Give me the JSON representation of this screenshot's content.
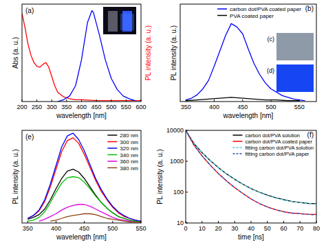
{
  "chart_data": [
    {
      "type": "line",
      "title": "(a)",
      "xlabel": "wavelength [nm]",
      "ylabel": "Abs (a. u.)",
      "y2label": "PL intensity (a. u.)",
      "xlim": [
        200,
        600
      ],
      "xticks": [
        200,
        250,
        300,
        350,
        400,
        450,
        500,
        550,
        600
      ],
      "ylim": [
        0,
        1.05
      ],
      "y2lim": [
        0,
        1.05
      ],
      "tick_labels": "x",
      "series": [
        {
          "color": "#ff0000",
          "x": [
            200,
            210,
            220,
            230,
            240,
            250,
            260,
            270,
            280,
            290,
            300,
            310,
            320,
            340,
            360,
            380,
            400,
            450,
            500,
            550,
            600
          ],
          "values": [
            0.95,
            0.8,
            0.62,
            0.5,
            0.42,
            0.38,
            0.37,
            0.4,
            0.42,
            0.37,
            0.27,
            0.17,
            0.1,
            0.05,
            0.03,
            0.02,
            0.02,
            0.01,
            0.01,
            0.01,
            0.01
          ]
        },
        {
          "color": "#0000ff",
          "axis": "y2",
          "x": [
            320,
            340,
            360,
            380,
            400,
            420,
            435,
            440,
            460,
            480,
            500,
            520,
            540,
            560,
            580
          ],
          "values": [
            0,
            0.02,
            0.06,
            0.17,
            0.45,
            0.85,
            0.98,
            0.96,
            0.72,
            0.45,
            0.25,
            0.13,
            0.06,
            0.03,
            0.01
          ]
        }
      ]
    },
    {
      "type": "line",
      "title": "(b)",
      "xlabel": "wavelength [nm]",
      "ylabel": "PL intensity (a. u.)",
      "xlim": [
        340,
        580
      ],
      "xticks": [
        350,
        400,
        450,
        500,
        550
      ],
      "ylim": [
        0,
        1.15
      ],
      "tick_labels": "x",
      "legend": "top-right",
      "annotations": [
        "(c)",
        "(d)"
      ],
      "series": [
        {
          "name": "carbon dot/PVA coated paper",
          "color": "#0000ff",
          "x": [
            350,
            360,
            370,
            380,
            390,
            400,
            410,
            420,
            430,
            440,
            450,
            460,
            470,
            480,
            490,
            500,
            520,
            540,
            560
          ],
          "values": [
            0.02,
            0.04,
            0.08,
            0.15,
            0.25,
            0.42,
            0.6,
            0.78,
            0.92,
            0.88,
            0.8,
            0.62,
            0.45,
            0.32,
            0.22,
            0.15,
            0.07,
            0.03,
            0.01
          ]
        },
        {
          "name": "PVA coated paper",
          "color": "#000000",
          "x": [
            350,
            370,
            390,
            410,
            430,
            450,
            470,
            490,
            510,
            530,
            550
          ],
          "values": [
            0.01,
            0.02,
            0.03,
            0.04,
            0.05,
            0.04,
            0.03,
            0.02,
            0.02,
            0.01,
            0.01
          ]
        }
      ]
    },
    {
      "type": "line",
      "title": "(e)",
      "xlabel": "wavelength [nm]",
      "ylabel": "PL intensity (a. u.)",
      "xlim": [
        340,
        550
      ],
      "xticks": [
        350,
        400,
        450,
        500,
        550
      ],
      "ylim": [
        0,
        1
      ],
      "tick_labels": "x",
      "legend": "top-right",
      "x": [
        350,
        360,
        370,
        380,
        390,
        400,
        410,
        420,
        430,
        440,
        450,
        460,
        470,
        480,
        490,
        500,
        510,
        520,
        530,
        540,
        550
      ],
      "series": [
        {
          "name": "280 nm",
          "color": "#000000",
          "values": [
            0.04,
            0.06,
            0.09,
            0.15,
            0.25,
            0.37,
            0.48,
            0.56,
            0.58,
            0.55,
            0.48,
            0.39,
            0.3,
            0.22,
            0.16,
            0.11,
            0.07,
            0.05,
            0.03,
            0.02,
            0.01
          ]
        },
        {
          "name": "300 nm",
          "color": "#ff0000",
          "values": [
            0.05,
            0.08,
            0.13,
            0.23,
            0.39,
            0.58,
            0.77,
            0.89,
            0.92,
            0.86,
            0.74,
            0.6,
            0.46,
            0.34,
            0.25,
            0.17,
            0.11,
            0.07,
            0.05,
            0.03,
            0.02
          ]
        },
        {
          "name": "320 nm",
          "color": "#0000ff",
          "values": [
            0.05,
            0.08,
            0.14,
            0.25,
            0.42,
            0.62,
            0.82,
            0.94,
            0.97,
            0.9,
            0.78,
            0.63,
            0.48,
            0.36,
            0.26,
            0.18,
            0.12,
            0.08,
            0.05,
            0.03,
            0.02
          ]
        },
        {
          "name": "340 nm",
          "color": "#00c000",
          "values": [
            0.02,
            0.03,
            0.06,
            0.12,
            0.22,
            0.33,
            0.43,
            0.49,
            0.5,
            0.49,
            0.44,
            0.37,
            0.29,
            0.22,
            0.16,
            0.11,
            0.07,
            0.05,
            0.03,
            0.02,
            0.01
          ]
        },
        {
          "name": "360 nm",
          "color": "#e000e0",
          "values": [
            null,
            null,
            0.02,
            0.04,
            0.07,
            0.1,
            0.14,
            0.17,
            0.19,
            0.2,
            0.2,
            0.18,
            0.15,
            0.12,
            0.09,
            0.06,
            0.04,
            0.03,
            0.02,
            0.01,
            0.01
          ]
        },
        {
          "name": "380 nm",
          "color": "#8b4513",
          "values": [
            null,
            null,
            null,
            null,
            0.02,
            0.03,
            0.05,
            0.07,
            0.08,
            0.09,
            0.1,
            0.1,
            0.09,
            0.07,
            0.05,
            0.04,
            0.03,
            0.02,
            0.01,
            0.01,
            0.01
          ]
        }
      ]
    },
    {
      "type": "line",
      "title": "(f)",
      "xlabel": "time [ns]",
      "ylabel": "PL intensity (a. u.)",
      "xlim": [
        0,
        80
      ],
      "xticks": [
        0,
        10,
        20,
        30,
        40,
        50,
        60,
        70,
        80
      ],
      "ylim": [
        10,
        10000
      ],
      "yticks": [
        10,
        100,
        1000,
        10000
      ],
      "log": "y",
      "legend": "top-right",
      "x": [
        0,
        5,
        10,
        15,
        20,
        25,
        30,
        35,
        40,
        45,
        50,
        55,
        60,
        65,
        70,
        75,
        80
      ],
      "series": [
        {
          "name": "carbon dot/PVA solution",
          "color": "#000000",
          "values": [
            10000,
            3800,
            1900,
            1050,
            620,
            390,
            260,
            180,
            130,
            100,
            80,
            66,
            57,
            50,
            46,
            43,
            42
          ]
        },
        {
          "name": "carbon dot/PVA coated paper",
          "color": "#ff0000",
          "values": [
            10000,
            3400,
            1500,
            750,
            400,
            230,
            140,
            90,
            60,
            43,
            33,
            27,
            23,
            21,
            20,
            19,
            19
          ]
        },
        {
          "name": "fitting carbon dot/PVA solution",
          "color": "#40d0e0",
          "line_style": "dashed",
          "values": [
            10000,
            3700,
            1900,
            1050,
            620,
            390,
            260,
            180,
            130,
            98,
            78,
            65,
            56,
            50,
            46,
            43,
            41
          ]
        },
        {
          "name": "fitting carbon dot/PVA paper",
          "color": "#1f4fbf",
          "line_style": "dashed",
          "values": [
            10000,
            3300,
            1500,
            750,
            400,
            230,
            140,
            90,
            60,
            43,
            33,
            27,
            23,
            21,
            20,
            19,
            18
          ]
        }
      ]
    }
  ]
}
